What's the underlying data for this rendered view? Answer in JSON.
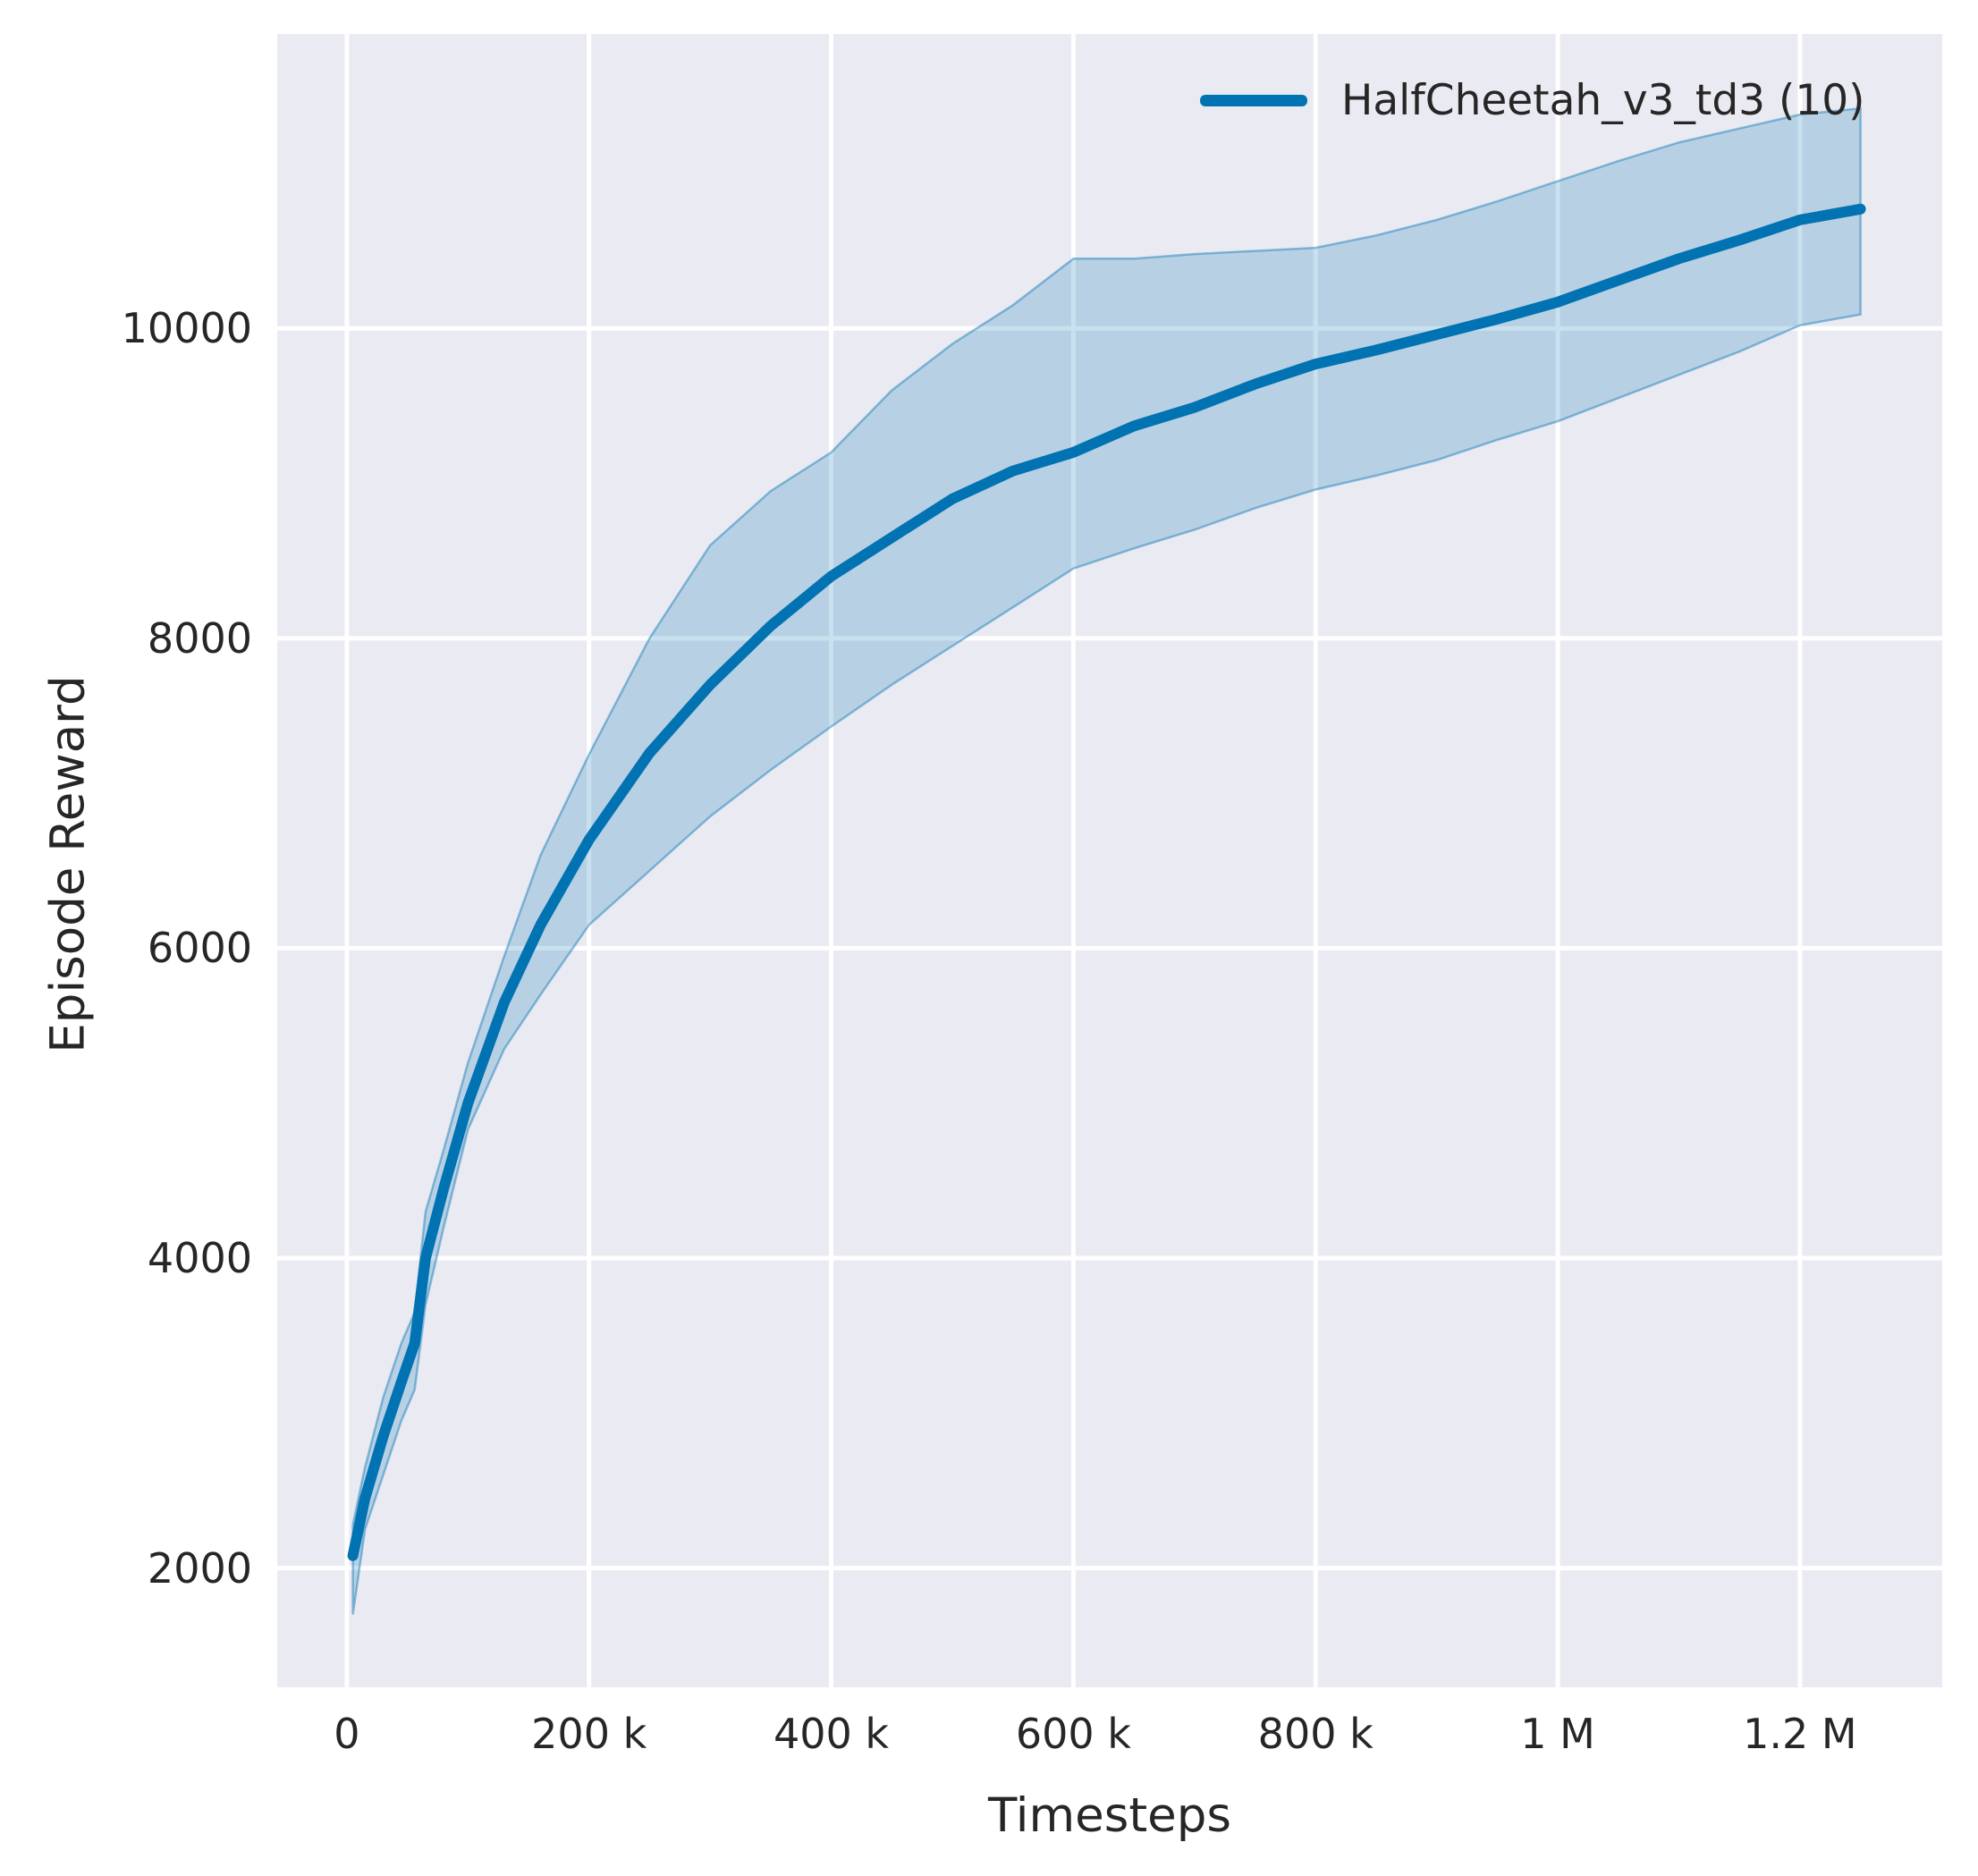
{
  "figure": {
    "plot_bg": "#eaeaf2",
    "grid_color": "#ffffff",
    "text_color": "#262626",
    "line_color": "#0173b2",
    "band_fill": "rgba(1,115,178,0.21)",
    "band_edge": "rgba(1,115,178,0.42)"
  },
  "chart_data": {
    "type": "line",
    "title": "",
    "xlabel": "Timesteps",
    "ylabel": "Episode Reward",
    "grid": true,
    "legend_position": "upper right",
    "legend": [
      {
        "label": "HalfCheetah_v3_td3 (10)",
        "color": "#0173b2"
      }
    ],
    "xlim": [
      -57500,
      1317500
    ],
    "ylim": [
      1230,
      11900
    ],
    "x_ticks": [
      {
        "value": 0,
        "label": "0"
      },
      {
        "value": 200000,
        "label": "200 k"
      },
      {
        "value": 400000,
        "label": "400 k"
      },
      {
        "value": 600000,
        "label": "600 k"
      },
      {
        "value": 800000,
        "label": "800 k"
      },
      {
        "value": 1000000,
        "label": "1 M"
      },
      {
        "value": 1200000,
        "label": "1.2 M"
      }
    ],
    "y_ticks": [
      {
        "value": 2000,
        "label": "2000"
      },
      {
        "value": 4000,
        "label": "4000"
      },
      {
        "value": 6000,
        "label": "6000"
      },
      {
        "value": 8000,
        "label": "8000"
      },
      {
        "value": 10000,
        "label": "10000"
      }
    ],
    "series": [
      {
        "name": "HalfCheetah_v3_td3 (10)",
        "x": [
          5000,
          15000,
          30000,
          45000,
          56000,
          65000,
          80000,
          100000,
          130000,
          160000,
          200000,
          250000,
          300000,
          350000,
          400000,
          450000,
          500000,
          550000,
          600000,
          650000,
          700000,
          750000,
          800000,
          850000,
          900000,
          950000,
          1000000,
          1050000,
          1100000,
          1150000,
          1200000,
          1250000
        ],
        "mean": [
          2080,
          2450,
          2850,
          3200,
          3450,
          4000,
          4450,
          5000,
          5650,
          6150,
          6700,
          7260,
          7700,
          8080,
          8400,
          8650,
          8900,
          9080,
          9200,
          9370,
          9490,
          9640,
          9770,
          9860,
          9960,
          10060,
          10170,
          10310,
          10450,
          10570,
          10700,
          10770
        ],
        "lower": [
          1700,
          2250,
          2600,
          2950,
          3150,
          3700,
          4200,
          4830,
          5350,
          5700,
          6150,
          6500,
          6850,
          7150,
          7430,
          7700,
          7950,
          8200,
          8450,
          8580,
          8700,
          8840,
          8960,
          9050,
          9150,
          9280,
          9400,
          9550,
          9700,
          9850,
          10020,
          10090
        ],
        "upper": [
          2280,
          2650,
          3100,
          3450,
          3650,
          4300,
          4700,
          5260,
          5950,
          6600,
          7250,
          8000,
          8600,
          8950,
          9200,
          9600,
          9900,
          10150,
          10450,
          10450,
          10480,
          10500,
          10520,
          10600,
          10700,
          10820,
          10950,
          11080,
          11200,
          11290,
          11380,
          11420
        ]
      }
    ]
  }
}
